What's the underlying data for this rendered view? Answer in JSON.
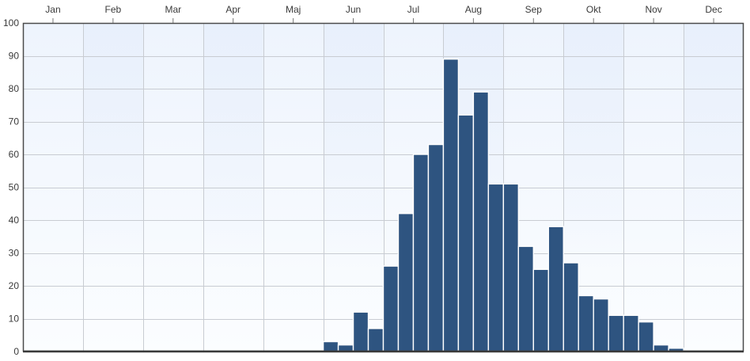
{
  "colors": {
    "bar_fill": "#2e5480",
    "plot_bg_top": "#eef4fd",
    "plot_bg_bottom": "#fbfdff",
    "band_tint": "#e6eefb",
    "frame": "#4a4a4a"
  },
  "chart_data": {
    "type": "bar",
    "title": "",
    "xlabel": "",
    "ylabel": "",
    "months": [
      "Jan",
      "Feb",
      "Mar",
      "Apr",
      "Maj",
      "Jun",
      "Jul",
      "Aug",
      "Sep",
      "Okt",
      "Nov",
      "Dec"
    ],
    "x_axis_position": "top",
    "bins_per_month": 4,
    "ylim": [
      0,
      100
    ],
    "y_ticks": [
      0,
      10,
      20,
      30,
      40,
      50,
      60,
      70,
      80,
      90,
      100
    ],
    "grid": true,
    "values": [
      0,
      0,
      0,
      0,
      0,
      0,
      0,
      0,
      0,
      0,
      0,
      0,
      0,
      0,
      0,
      0,
      0,
      0,
      0,
      0,
      3,
      2,
      12,
      7,
      26,
      42,
      60,
      63,
      89,
      72,
      79,
      51,
      51,
      32,
      25,
      38,
      27,
      17,
      16,
      11,
      11,
      9,
      2,
      1,
      0,
      0,
      0,
      0
    ]
  }
}
